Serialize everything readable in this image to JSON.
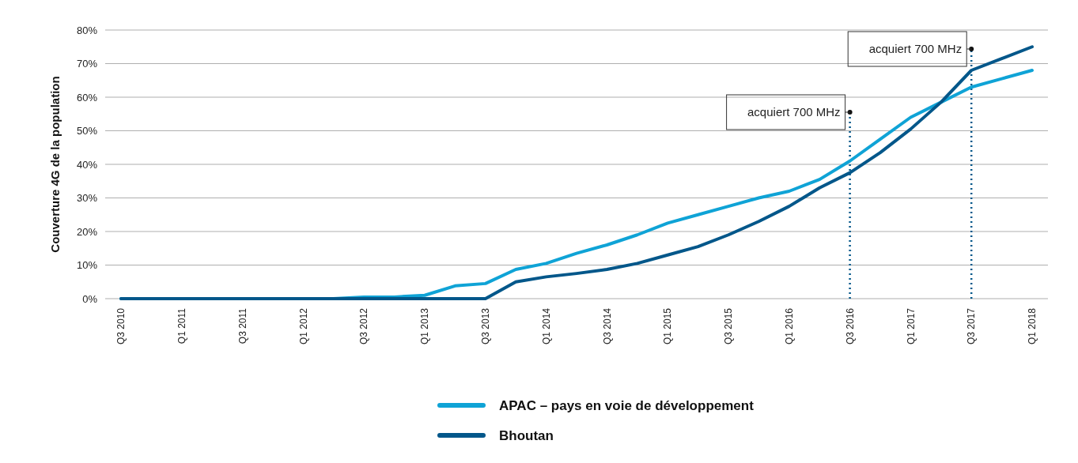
{
  "chart_data": {
    "type": "line",
    "ylabel": "Couverture 4G de la population",
    "categories": [
      "Q3 2010",
      null,
      "Q1 2011",
      null,
      "Q3 2011",
      null,
      "Q1 2012",
      null,
      "Q3 2012",
      null,
      "Q1 2013",
      null,
      "Q3 2013",
      null,
      "Q1 2014",
      null,
      "Q3 2014",
      null,
      "Q1 2015",
      null,
      "Q3 2015",
      null,
      "Q1 2016",
      null,
      "Q3 2016",
      null,
      "Q1 2017",
      null,
      "Q3 2017",
      null,
      "Q1 2018"
    ],
    "series": [
      {
        "name": "APAC – pays en voie de développement",
        "color": "#0fa3d6",
        "values": [
          0,
          0,
          0,
          0,
          0,
          0,
          0,
          0,
          0.5,
          0.5,
          1,
          3.8,
          4.5,
          8.7,
          10.5,
          13.5,
          16,
          19,
          22.5,
          25,
          27.5,
          30,
          32,
          35.5,
          41,
          47.5,
          54,
          58.5,
          63,
          65.5,
          68
        ]
      },
      {
        "name": "Bhoutan",
        "color": "#03578a",
        "values": [
          0,
          0,
          0,
          0,
          0,
          0,
          0,
          0,
          0,
          0,
          0,
          0,
          0,
          5,
          6.5,
          7.5,
          8.7,
          10.5,
          13,
          15.5,
          19,
          23,
          27.5,
          33,
          37.5,
          43.5,
          50.5,
          58.5,
          68,
          71.5,
          75
        ]
      }
    ],
    "ylim": [
      0,
      80
    ],
    "yticks": [
      {
        "value": 0,
        "label": "0%"
      },
      {
        "value": 10,
        "label": "10%"
      },
      {
        "value": 20,
        "label": "20%"
      },
      {
        "value": 30,
        "label": "30%"
      },
      {
        "value": 40,
        "label": "40%"
      },
      {
        "value": 50,
        "label": "50%"
      },
      {
        "value": 60,
        "label": "60%"
      },
      {
        "value": 70,
        "label": "70%"
      },
      {
        "value": 80,
        "label": "80%"
      }
    ],
    "grid": "y",
    "legend": "bottom",
    "ref_lines": [
      {
        "axis": "x",
        "value": "Q3 2016",
        "label": "acquiert 700 MHz",
        "color": "#03578a",
        "line_style": "dotted"
      },
      {
        "axis": "x",
        "value": "Q3 2017",
        "label": "acquiert 700 MHz",
        "color": "#03578a",
        "line_style": "dotted"
      }
    ]
  }
}
